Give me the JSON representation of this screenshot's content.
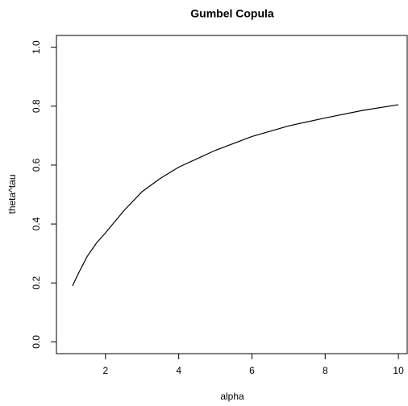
{
  "chart_data": {
    "type": "line",
    "title": "Gumbel Copula",
    "x_label": "alpha",
    "y_label": "theta^tau",
    "x": [
      1.1,
      1.25,
      1.5,
      1.75,
      2,
      2.5,
      3,
      3.5,
      4,
      5,
      6,
      7,
      8,
      9,
      10
    ],
    "series": [
      {
        "color": "#000000",
        "values": [
          0.19,
          0.23,
          0.29,
          0.335,
          0.37,
          0.445,
          0.51,
          0.555,
          0.593,
          0.65,
          0.697,
          0.733,
          0.76,
          0.785,
          0.805
        ]
      }
    ],
    "xlim": [
      0.66,
      10.24
    ],
    "ylim": [
      -0.04,
      1.04
    ],
    "xticks": [
      2,
      4,
      6,
      8,
      10
    ],
    "yticks": [
      {
        "value": 0,
        "label": "0.0"
      },
      {
        "value": 0.2,
        "label": "0.2"
      },
      {
        "value": 0.4,
        "label": "0.4"
      },
      {
        "value": 0.6,
        "label": "0.6"
      },
      {
        "value": 0.8,
        "label": "0.8"
      },
      {
        "value": 1,
        "label": "1.0"
      }
    ]
  }
}
